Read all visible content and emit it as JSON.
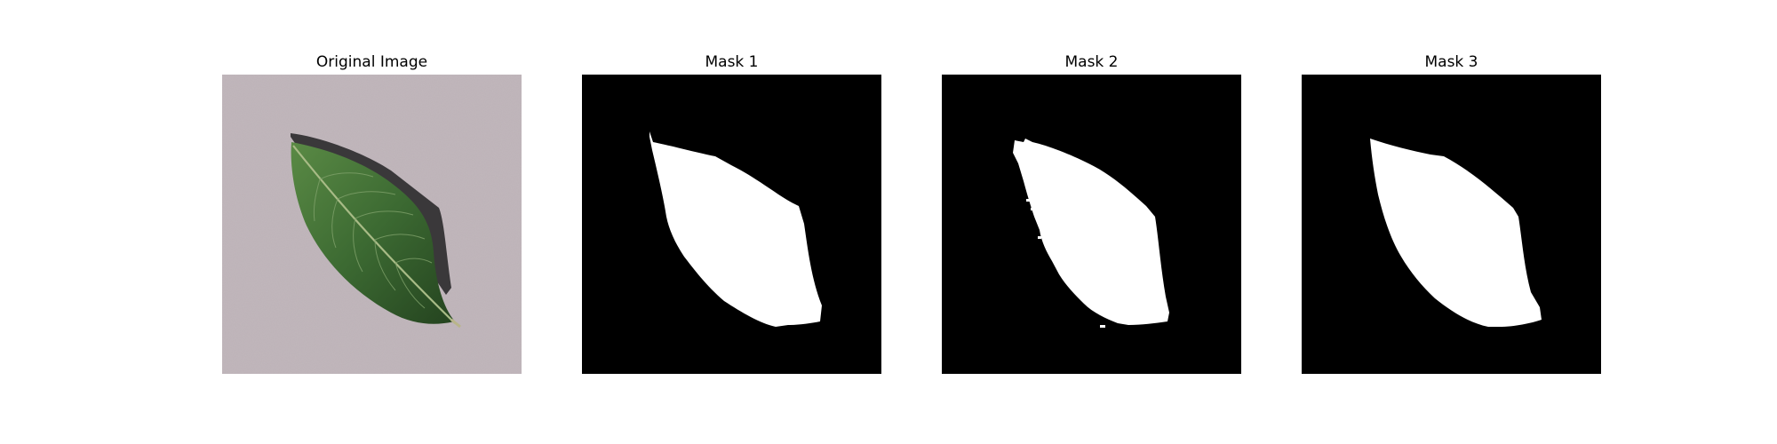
{
  "figure": {
    "panels": [
      {
        "title": "Original Image",
        "kind": "photo",
        "subject": "leaf"
      },
      {
        "title": "Mask 1",
        "kind": "mask"
      },
      {
        "title": "Mask 2",
        "kind": "mask"
      },
      {
        "title": "Mask 3",
        "kind": "mask"
      }
    ],
    "colors": {
      "background": "#ffffff",
      "mask_background": "#000000",
      "mask_foreground": "#ffffff",
      "photo_background": "#b9aeb3",
      "leaf_green": "#3c6a32",
      "leaf_dark": "#24431f",
      "leaf_vein": "#a8bb86",
      "leaf_shadow": "#2b2a2c"
    }
  }
}
